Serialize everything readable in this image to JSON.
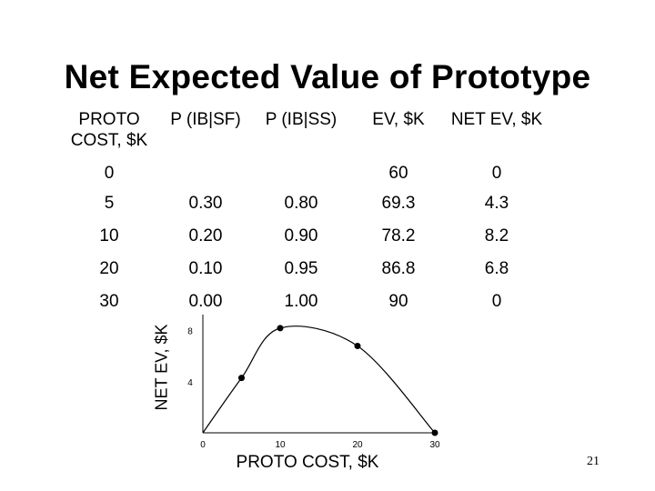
{
  "slide": {
    "title": "Net Expected Value of Prototype",
    "page_number": "21"
  },
  "table": {
    "headers": [
      "PROTO COST, $K",
      "P (IB|SF)",
      "P (IB|SS)",
      "EV, $K",
      "NET EV, $K"
    ],
    "rows": [
      [
        "0",
        "",
        "",
        "60",
        "0"
      ],
      [
        "5",
        "0.30",
        "0.80",
        "69.3",
        "4.3"
      ],
      [
        "10",
        "0.20",
        "0.90",
        "78.2",
        "8.2"
      ],
      [
        "20",
        "0.10",
        "0.95",
        "86.8",
        "6.8"
      ],
      [
        "30",
        "0.00",
        "1.00",
        "90",
        "0"
      ]
    ]
  },
  "chart_data": {
    "type": "line",
    "xlabel": "PROTO COST, $K",
    "ylabel": "NET EV, $K",
    "x": [
      0,
      5,
      10,
      20,
      30
    ],
    "y": [
      0,
      4.3,
      8.2,
      6.8,
      0
    ],
    "xlim": [
      0,
      30
    ],
    "ylim": [
      0,
      10
    ],
    "xticks": [
      0,
      10,
      20,
      30
    ],
    "yticks": [
      4,
      8
    ],
    "grid": false,
    "smooth": true
  }
}
